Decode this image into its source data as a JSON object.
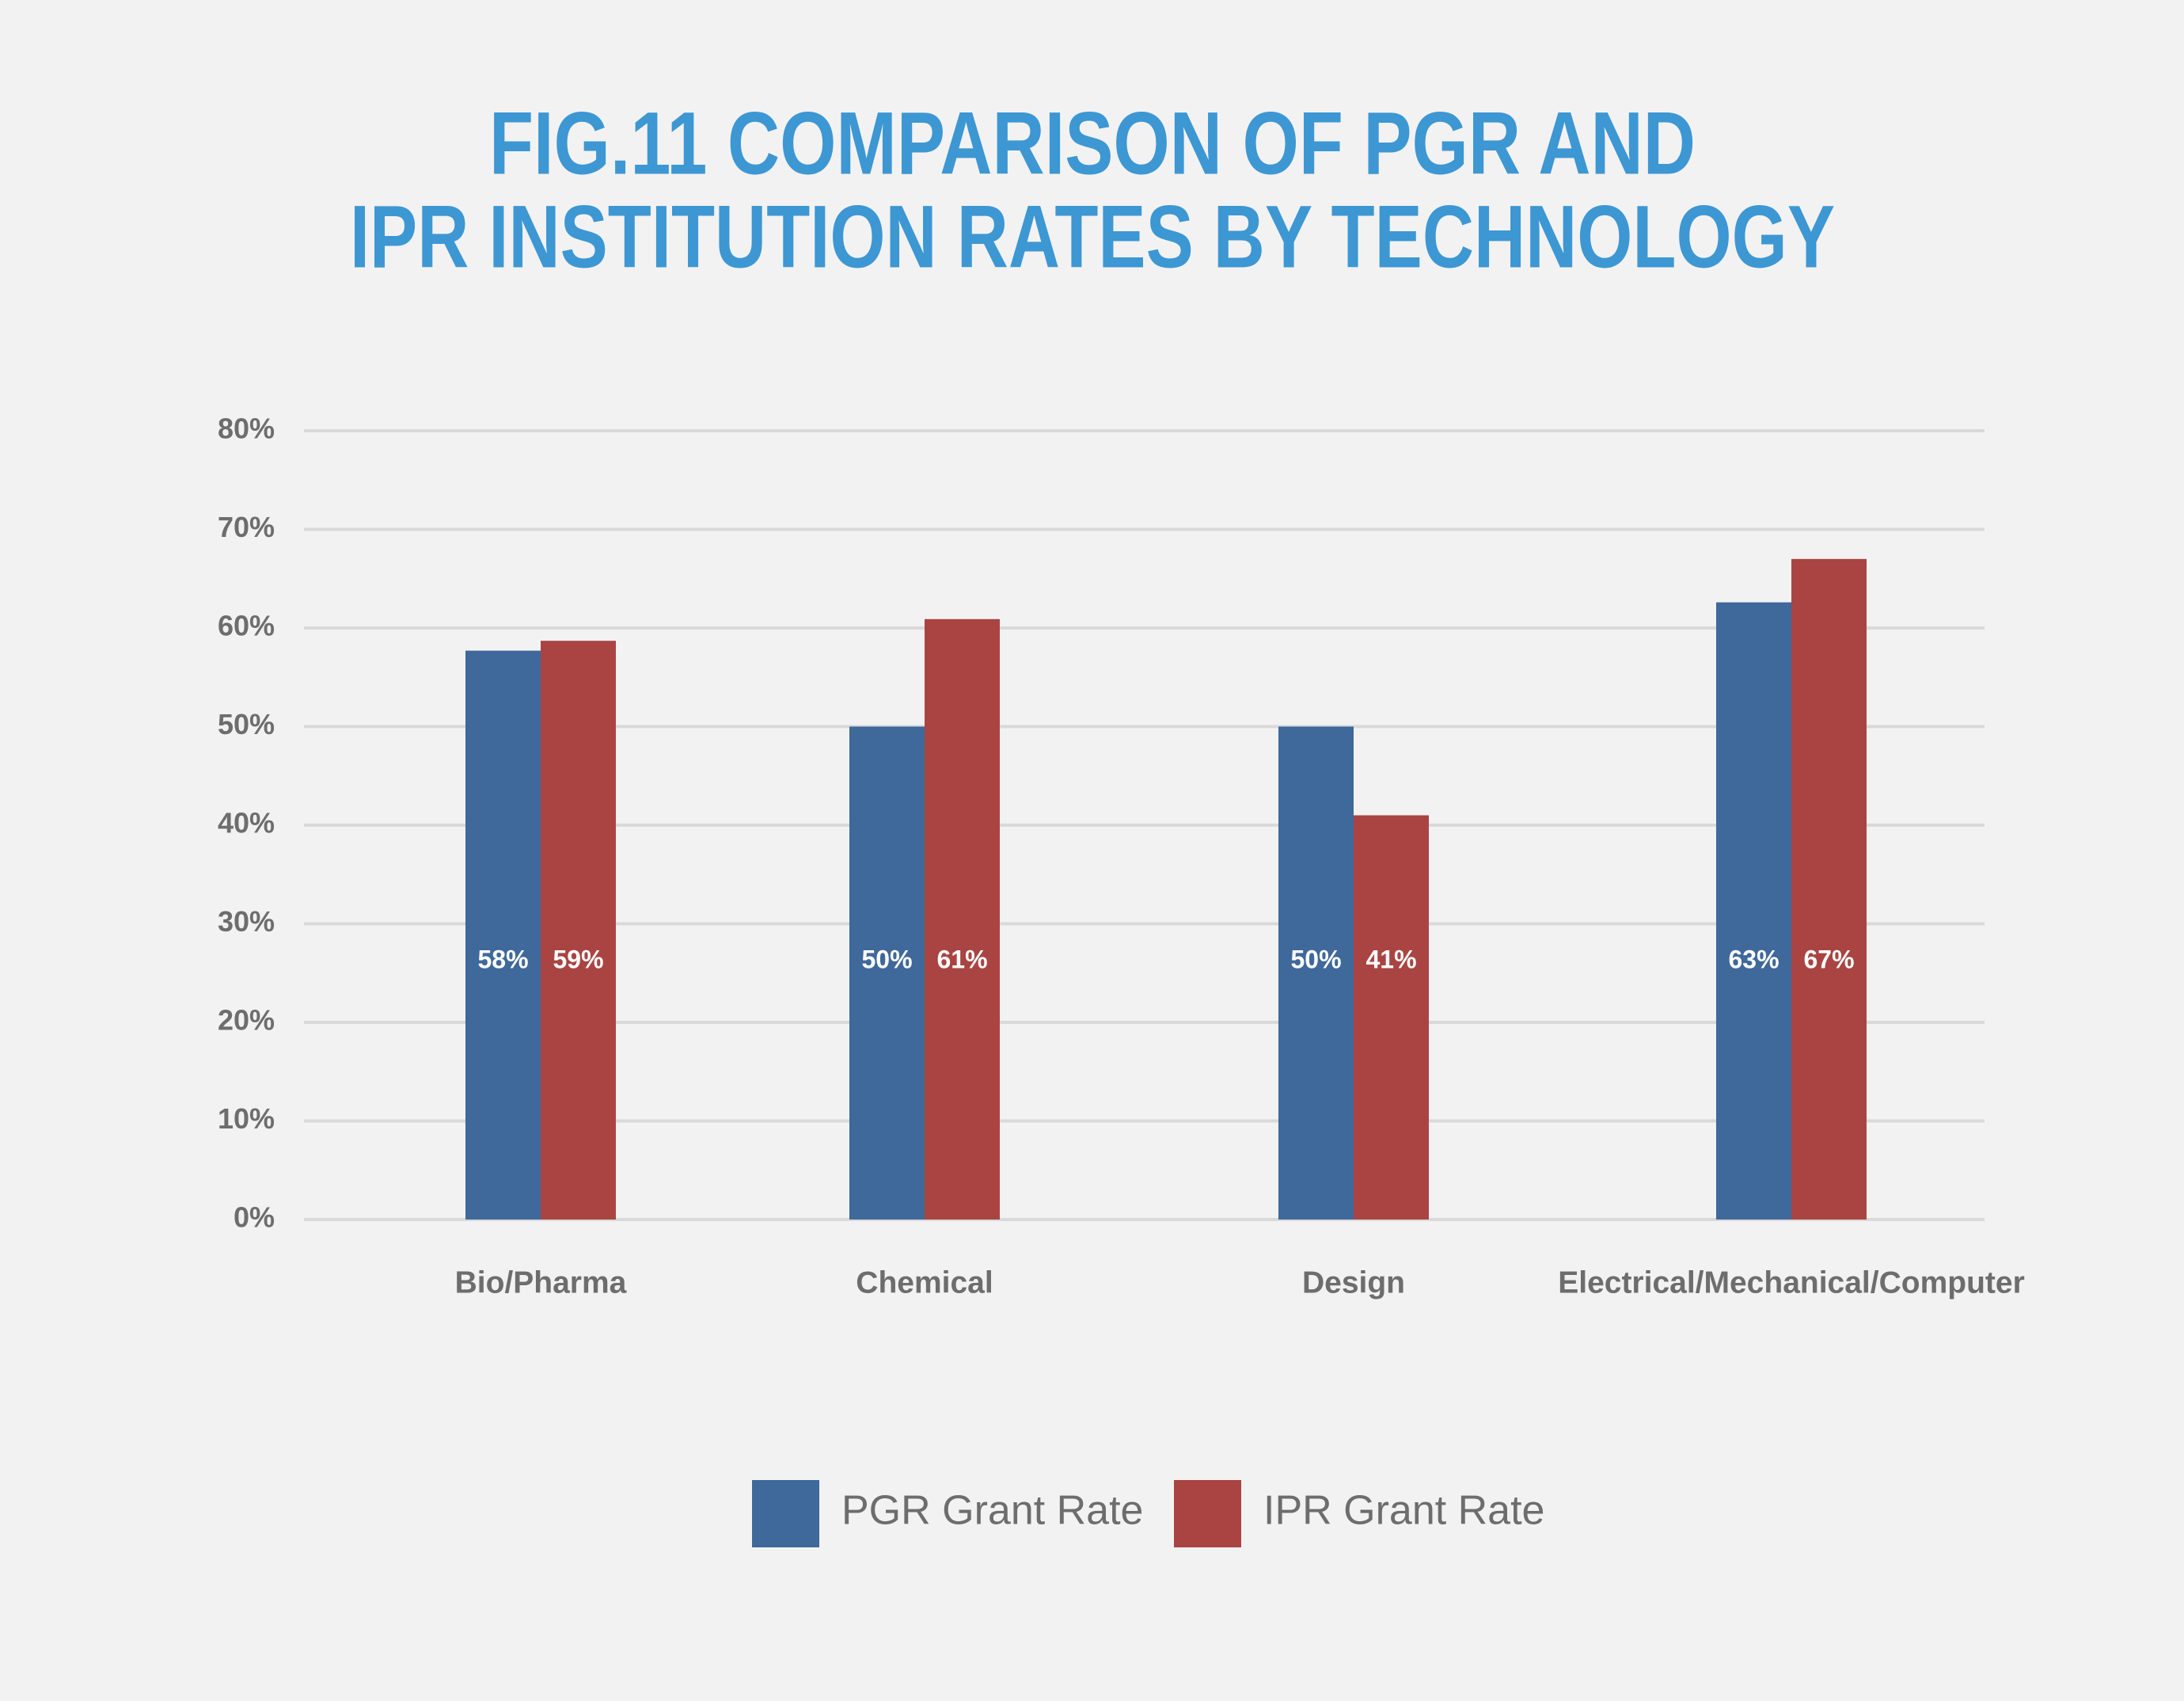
{
  "chart_data": {
    "type": "bar",
    "title": [
      "FIG.11 COMPARISON OF PGR AND",
      "IPR INSTITUTION RATES BY TECHNOLOGY"
    ],
    "categories": [
      "Bio/Pharma",
      "Chemical",
      "Design",
      "Electrical/Mechanical/Computer"
    ],
    "series": [
      {
        "name": "PGR Grant Rate",
        "color": "#3f689b",
        "values": [
          57.7,
          50,
          50,
          62.6
        ],
        "value_labels": [
          "58%",
          "50%",
          "50%",
          "63%"
        ]
      },
      {
        "name": "IPR Grant Rate",
        "color": "#a94442",
        "values": [
          58.7,
          60.9,
          41,
          67
        ],
        "value_labels": [
          "59%",
          "61%",
          "41%",
          "67%"
        ]
      }
    ],
    "ylim": [
      0,
      80
    ],
    "yticks": [
      {
        "value": 0,
        "label": "0%"
      },
      {
        "value": 10,
        "label": "10%"
      },
      {
        "value": 20,
        "label": "20%"
      },
      {
        "value": 30,
        "label": "30%"
      },
      {
        "value": 40,
        "label": "40%"
      },
      {
        "value": 50,
        "label": "50%"
      },
      {
        "value": 60,
        "label": "60%"
      },
      {
        "value": 70,
        "label": "70%"
      },
      {
        "value": 80,
        "label": "80%"
      }
    ],
    "grid": true
  }
}
